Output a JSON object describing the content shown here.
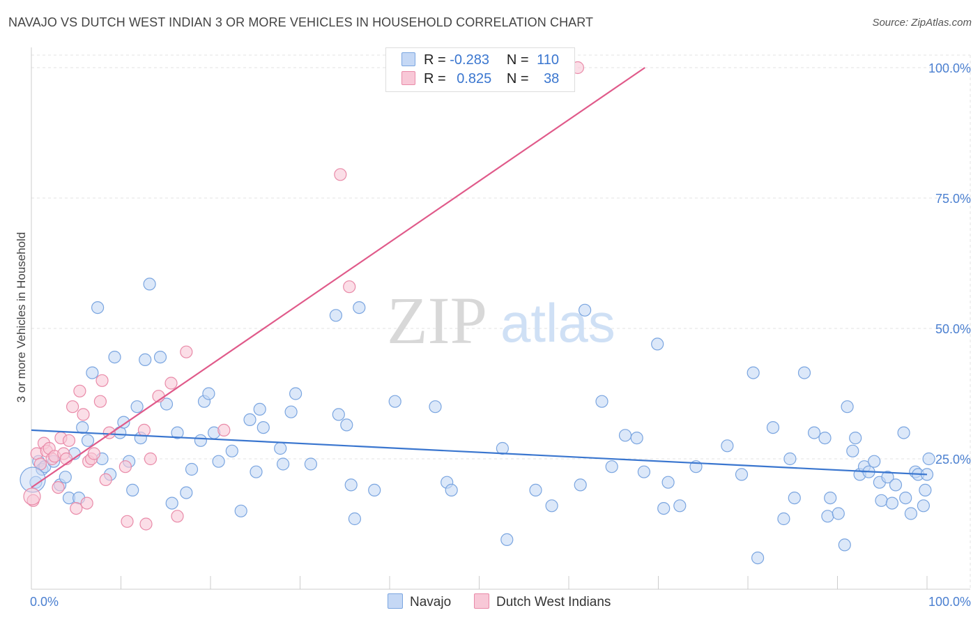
{
  "title": "NAVAJO VS DUTCH WEST INDIAN 3 OR MORE VEHICLES IN HOUSEHOLD CORRELATION CHART",
  "source": "Source: ZipAtlas.com",
  "watermark": {
    "zip": "ZIP",
    "atlas": "atlas"
  },
  "legend": {
    "r_label": "R =",
    "n_label": "N =",
    "rows": [
      {
        "r": "-0.283",
        "n": "110",
        "fill": "#c5d8f5",
        "stroke": "#7aa5e0"
      },
      {
        "r": "0.825",
        "n": "38",
        "fill": "#f8c8d7",
        "stroke": "#e98aa8"
      }
    ]
  },
  "bottom_legend": [
    "Navajo",
    "Dutch West Indians"
  ],
  "chart_data": {
    "type": "scatter",
    "title": "NAVAJO VS DUTCH WEST INDIAN 3 OR MORE VEHICLES IN HOUSEHOLD CORRELATION CHART",
    "xlabel": "",
    "ylabel": "3 or more Vehicles in Household",
    "xlim": [
      0,
      100
    ],
    "ylim": [
      0,
      100
    ],
    "x_tick_labels": [
      "0.0%",
      "100.0%"
    ],
    "y_ticks": [
      25,
      50,
      75,
      100
    ],
    "y_tick_labels": [
      "25.0%",
      "50.0%",
      "75.0%",
      "100.0%"
    ],
    "grid": true,
    "legend_position": "top-center",
    "series": [
      {
        "name": "Navajo",
        "color": "#3a76cf",
        "fill": "#c5d8f5",
        "trend": [
          [
            0,
            30.5
          ],
          [
            100,
            22.0
          ]
        ],
        "points": [
          [
            0.5,
            20.5
          ],
          [
            0.8,
            24.5
          ],
          [
            1.2,
            23.0
          ],
          [
            1.5,
            23.5
          ],
          [
            2.5,
            24.5
          ],
          [
            3.2,
            20.0
          ],
          [
            3.8,
            21.5
          ],
          [
            4.2,
            17.5
          ],
          [
            4.8,
            26.0
          ],
          [
            5.3,
            17.5
          ],
          [
            5.7,
            31.0
          ],
          [
            6.3,
            28.5
          ],
          [
            6.8,
            41.5
          ],
          [
            7.4,
            54.0
          ],
          [
            7.9,
            25.0
          ],
          [
            8.8,
            22.0
          ],
          [
            9.3,
            44.5
          ],
          [
            9.9,
            30.0
          ],
          [
            10.3,
            32.0
          ],
          [
            10.9,
            24.5
          ],
          [
            11.3,
            19.0
          ],
          [
            11.8,
            35.0
          ],
          [
            12.2,
            29.0
          ],
          [
            12.7,
            44.0
          ],
          [
            13.2,
            58.5
          ],
          [
            14.4,
            44.5
          ],
          [
            15.1,
            35.5
          ],
          [
            15.7,
            16.5
          ],
          [
            16.3,
            30.0
          ],
          [
            17.3,
            18.5
          ],
          [
            17.9,
            23.0
          ],
          [
            18.9,
            28.5
          ],
          [
            19.3,
            36.0
          ],
          [
            19.8,
            37.5
          ],
          [
            20.4,
            30.0
          ],
          [
            20.9,
            24.5
          ],
          [
            22.4,
            26.5
          ],
          [
            23.4,
            15.0
          ],
          [
            24.4,
            32.5
          ],
          [
            25.1,
            22.5
          ],
          [
            25.5,
            34.5
          ],
          [
            25.9,
            31.0
          ],
          [
            27.8,
            27.0
          ],
          [
            28.1,
            24.0
          ],
          [
            29.0,
            34.0
          ],
          [
            29.5,
            37.5
          ],
          [
            31.2,
            24.0
          ],
          [
            34.0,
            52.5
          ],
          [
            34.3,
            33.5
          ],
          [
            35.2,
            31.5
          ],
          [
            35.7,
            20.0
          ],
          [
            36.1,
            13.5
          ],
          [
            36.6,
            54.0
          ],
          [
            38.3,
            19.0
          ],
          [
            40.6,
            36.0
          ],
          [
            45.1,
            35.0
          ],
          [
            46.4,
            20.5
          ],
          [
            46.9,
            19.0
          ],
          [
            52.6,
            27.0
          ],
          [
            53.1,
            9.5
          ],
          [
            56.3,
            19.0
          ],
          [
            58.1,
            16.0
          ],
          [
            61.3,
            20.0
          ],
          [
            61.8,
            53.5
          ],
          [
            63.7,
            36.0
          ],
          [
            64.8,
            23.5
          ],
          [
            66.3,
            29.5
          ],
          [
            67.6,
            29.0
          ],
          [
            68.4,
            22.5
          ],
          [
            69.9,
            47.0
          ],
          [
            70.6,
            15.5
          ],
          [
            71.1,
            20.5
          ],
          [
            72.4,
            16.0
          ],
          [
            74.2,
            23.5
          ],
          [
            77.7,
            27.5
          ],
          [
            79.3,
            22.0
          ],
          [
            80.6,
            41.5
          ],
          [
            81.1,
            6.0
          ],
          [
            82.8,
            31.0
          ],
          [
            84.0,
            13.5
          ],
          [
            84.7,
            25.0
          ],
          [
            85.2,
            17.5
          ],
          [
            86.3,
            41.5
          ],
          [
            87.4,
            30.0
          ],
          [
            88.6,
            29.0
          ],
          [
            88.9,
            14.0
          ],
          [
            89.2,
            17.5
          ],
          [
            90.1,
            14.5
          ],
          [
            90.8,
            8.5
          ],
          [
            91.1,
            35.0
          ],
          [
            91.7,
            26.5
          ],
          [
            92.0,
            29.0
          ],
          [
            92.5,
            22.0
          ],
          [
            93.0,
            23.5
          ],
          [
            93.5,
            22.5
          ],
          [
            94.1,
            24.5
          ],
          [
            94.7,
            20.5
          ],
          [
            94.9,
            17.0
          ],
          [
            95.6,
            21.5
          ],
          [
            96.1,
            16.5
          ],
          [
            96.5,
            20.0
          ],
          [
            97.4,
            30.0
          ],
          [
            97.6,
            17.5
          ],
          [
            98.2,
            14.5
          ],
          [
            98.7,
            22.5
          ],
          [
            99.0,
            22.0
          ],
          [
            99.6,
            16.0
          ],
          [
            99.8,
            19.0
          ],
          [
            100.0,
            22.0
          ],
          [
            100.2,
            25.0
          ]
        ]
      },
      {
        "name": "Dutch West Indians",
        "color": "#e05a8a",
        "fill": "#f8c8d7",
        "trend": [
          [
            0,
            19.5
          ],
          [
            68.5,
            100
          ]
        ],
        "points": [
          [
            0.2,
            17.0
          ],
          [
            0.6,
            26.0
          ],
          [
            1.0,
            24.0
          ],
          [
            1.4,
            28.0
          ],
          [
            1.7,
            26.5
          ],
          [
            2.0,
            27.0
          ],
          [
            2.3,
            25.0
          ],
          [
            2.6,
            25.5
          ],
          [
            3.0,
            19.5
          ],
          [
            3.3,
            29.0
          ],
          [
            3.6,
            26.0
          ],
          [
            3.9,
            25.0
          ],
          [
            4.2,
            28.5
          ],
          [
            4.6,
            35.0
          ],
          [
            5.0,
            15.5
          ],
          [
            5.4,
            38.0
          ],
          [
            5.8,
            33.5
          ],
          [
            6.2,
            16.5
          ],
          [
            6.4,
            24.5
          ],
          [
            6.7,
            25.0
          ],
          [
            7.0,
            26.0
          ],
          [
            7.7,
            36.0
          ],
          [
            7.9,
            40.0
          ],
          [
            8.3,
            21.0
          ],
          [
            8.7,
            30.0
          ],
          [
            10.5,
            23.5
          ],
          [
            10.7,
            13.0
          ],
          [
            12.6,
            30.5
          ],
          [
            12.8,
            12.5
          ],
          [
            13.3,
            25.0
          ],
          [
            14.2,
            37.0
          ],
          [
            15.6,
            39.5
          ],
          [
            16.3,
            14.0
          ],
          [
            17.3,
            45.5
          ],
          [
            21.5,
            30.5
          ],
          [
            34.5,
            79.5
          ],
          [
            35.5,
            58.0
          ],
          [
            61.0,
            100.0
          ]
        ]
      }
    ]
  }
}
